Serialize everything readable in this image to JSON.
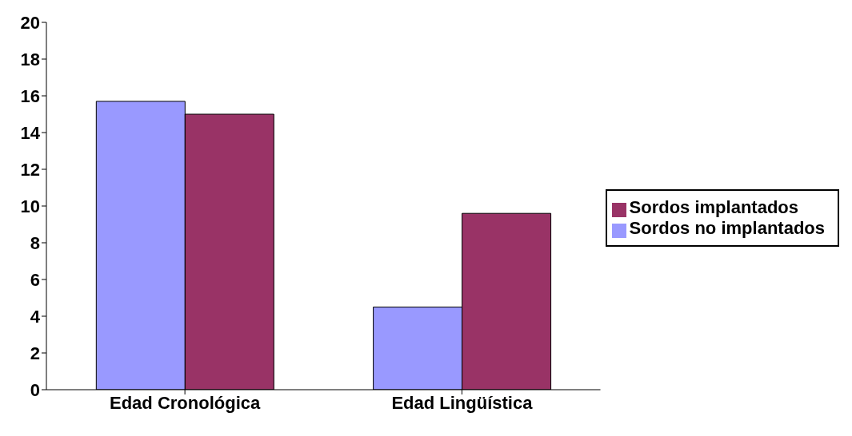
{
  "chart_data": {
    "type": "bar",
    "categories": [
      "Edad Cronológica",
      "Edad Lingüística"
    ],
    "series": [
      {
        "name": "Sordos no implantados",
        "color": "#9999ff",
        "values": [
          15.7,
          4.5
        ]
      },
      {
        "name": "Sordos implantados",
        "color": "#993366",
        "values": [
          15,
          9.6
        ]
      }
    ],
    "ylim": [
      0,
      20
    ],
    "yticks": [
      0,
      2,
      4,
      6,
      8,
      10,
      12,
      14,
      16,
      18,
      20
    ],
    "grid": false,
    "legend": "right"
  }
}
